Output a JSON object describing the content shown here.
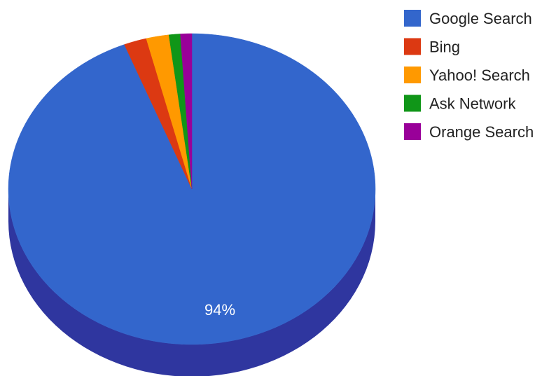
{
  "chart_data": {
    "type": "pie",
    "variant": "3d",
    "legend_position": "right",
    "slices": [
      {
        "label": "Google Search",
        "value": 94,
        "color": "#3366cc",
        "side_color": "#2f369f",
        "data_label": "94%"
      },
      {
        "label": "Bing",
        "value": 2,
        "color": "#dc3912",
        "side_color": "#8f2a10"
      },
      {
        "label": "Yahoo! Search",
        "value": 2,
        "color": "#ff9900",
        "side_color": "#b86e00"
      },
      {
        "label": "Ask Network",
        "value": 1,
        "color": "#109618",
        "side_color": "#0b6a11"
      },
      {
        "label": "Orange Search",
        "value": 1,
        "color": "#990099",
        "side_color": "#6b006b"
      }
    ]
  }
}
